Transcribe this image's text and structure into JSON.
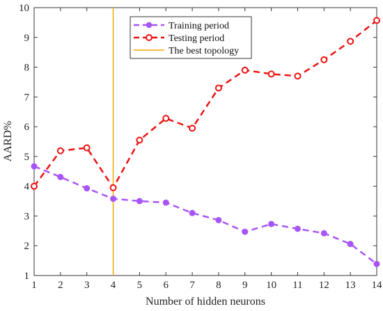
{
  "chart_data": {
    "type": "line",
    "xlabel": "Number of hidden neurons",
    "ylabel": "AARD%",
    "xlim": [
      1,
      14
    ],
    "ylim": [
      1,
      10
    ],
    "x_ticks": [
      1,
      2,
      3,
      4,
      5,
      6,
      7,
      8,
      9,
      10,
      11,
      12,
      13,
      14
    ],
    "y_ticks": [
      1,
      2,
      3,
      4,
      5,
      6,
      7,
      8,
      9,
      10
    ],
    "grid": false,
    "legend_position": "top-center",
    "x": [
      1,
      2,
      3,
      4,
      5,
      6,
      7,
      8,
      9,
      10,
      11,
      12,
      13,
      14
    ],
    "series": [
      {
        "name": "Training period",
        "color": "#a855f7",
        "line_style": "dashed",
        "marker": "filled-circle",
        "values": [
          4.67,
          4.31,
          3.93,
          3.58,
          3.5,
          3.45,
          3.1,
          2.86,
          2.47,
          2.73,
          2.57,
          2.42,
          2.06,
          1.39
        ]
      },
      {
        "name": "Testing period",
        "color": "#ee1111",
        "line_style": "dashed",
        "marker": "open-circle",
        "values": [
          4.0,
          5.19,
          5.29,
          3.95,
          5.55,
          6.28,
          5.95,
          7.3,
          7.9,
          7.77,
          7.7,
          8.25,
          8.87,
          9.57
        ]
      }
    ],
    "reference_line": {
      "name": "The best topology",
      "x": 4,
      "color": "#f2a900"
    }
  }
}
